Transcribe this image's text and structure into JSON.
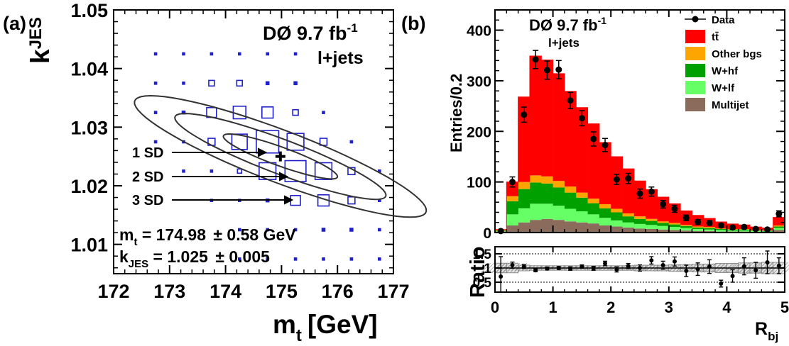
{
  "chart_data": [
    {
      "panel_label": "(a)",
      "type": "scatter",
      "title": "DØ 9.7 fb",
      "title_sup": "-1",
      "subtitle": "l+jets",
      "xlabel": "m",
      "xlabel_sub": "t",
      "xlabel_unit": "[GeV]",
      "ylabel": "k",
      "ylabel_sub": "JES",
      "xlim": [
        172,
        177
      ],
      "ylim": [
        1.005,
        1.05
      ],
      "x_ticks": [
        "172",
        "173",
        "174",
        "175",
        "176",
        "177"
      ],
      "y_ticks": [
        "1.01",
        "1.02",
        "1.03",
        "1.04",
        "1.05"
      ],
      "x_tick_values": [
        172,
        173,
        174,
        175,
        176,
        177
      ],
      "y_tick_values": [
        1.01,
        1.02,
        1.03,
        1.04,
        1.05
      ],
      "box_color": "#2020c8",
      "ellipse_color": "#333333",
      "best_fit": {
        "x": 174.98,
        "y": 1.025
      },
      "ellipses": [
        {
          "label": "1 SD",
          "cx": 174.98,
          "cy": 1.025,
          "ax": [
            1.0,
            -0.0037
          ],
          "ay": [
            0.2,
            0.001
          ]
        },
        {
          "label": "2 SD",
          "cx": 174.98,
          "cy": 1.025,
          "ax": [
            1.85,
            -0.0071
          ],
          "ay": [
            0.37,
            0.0018
          ]
        },
        {
          "label": "3 SD",
          "cx": 174.98,
          "cy": 1.025,
          "ax": [
            2.55,
            -0.01
          ],
          "ay": [
            0.55,
            0.0027
          ]
        }
      ],
      "arrow_labels": [
        "1 SD",
        "2 SD",
        "3 SD"
      ],
      "grid_cells": [
        {
          "x": 172.75,
          "y": 1.0425,
          "w": 0.05
        },
        {
          "x": 173.25,
          "y": 1.0425,
          "w": 0.05
        },
        {
          "x": 173.75,
          "y": 1.0425,
          "w": 0.05
        },
        {
          "x": 174.25,
          "y": 1.0425,
          "w": 0.05
        },
        {
          "x": 174.75,
          "y": 1.0425,
          "w": 0.05
        },
        {
          "x": 175.25,
          "y": 1.0425,
          "w": 0.05
        },
        {
          "x": 172.75,
          "y": 1.0375,
          "w": 0.05
        },
        {
          "x": 173.25,
          "y": 1.0375,
          "w": 0.05
        },
        {
          "x": 173.75,
          "y": 1.0375,
          "w": 0.2
        },
        {
          "x": 174.25,
          "y": 1.0375,
          "w": 0.2
        },
        {
          "x": 174.75,
          "y": 1.0375,
          "w": 0.1
        },
        {
          "x": 175.25,
          "y": 1.0375,
          "w": 0.1
        },
        {
          "x": 172.75,
          "y": 1.0325,
          "w": 0.05
        },
        {
          "x": 173.25,
          "y": 1.0325,
          "w": 0.1
        },
        {
          "x": 173.75,
          "y": 1.0325,
          "w": 0.35
        },
        {
          "x": 174.25,
          "y": 1.0325,
          "w": 0.45
        },
        {
          "x": 174.75,
          "y": 1.0325,
          "w": 0.4
        },
        {
          "x": 175.25,
          "y": 1.0325,
          "w": 0.2
        },
        {
          "x": 175.75,
          "y": 1.0325,
          "w": 0.05
        },
        {
          "x": 172.75,
          "y": 1.0275,
          "w": 0.05
        },
        {
          "x": 173.25,
          "y": 1.0275,
          "w": 0.05
        },
        {
          "x": 173.75,
          "y": 1.0275,
          "w": 0.25
        },
        {
          "x": 174.25,
          "y": 1.0275,
          "w": 0.55
        },
        {
          "x": 174.75,
          "y": 1.0275,
          "w": 0.8
        },
        {
          "x": 175.25,
          "y": 1.0275,
          "w": 0.6
        },
        {
          "x": 175.75,
          "y": 1.0275,
          "w": 0.25
        },
        {
          "x": 176.25,
          "y": 1.0275,
          "w": 0.05
        },
        {
          "x": 173.25,
          "y": 1.0225,
          "w": 0.05
        },
        {
          "x": 173.75,
          "y": 1.0225,
          "w": 0.05
        },
        {
          "x": 174.25,
          "y": 1.0225,
          "w": 0.15
        },
        {
          "x": 174.75,
          "y": 1.0225,
          "w": 0.6
        },
        {
          "x": 175.25,
          "y": 1.0225,
          "w": 0.75
        },
        {
          "x": 175.75,
          "y": 1.0225,
          "w": 0.6
        },
        {
          "x": 176.25,
          "y": 1.0225,
          "w": 0.25
        },
        {
          "x": 176.75,
          "y": 1.0225,
          "w": 0.05
        },
        {
          "x": 173.75,
          "y": 1.0175,
          "w": 0.05
        },
        {
          "x": 174.25,
          "y": 1.0175,
          "w": 0.05
        },
        {
          "x": 174.75,
          "y": 1.0175,
          "w": 0.1
        },
        {
          "x": 175.25,
          "y": 1.0175,
          "w": 0.35
        },
        {
          "x": 175.75,
          "y": 1.0175,
          "w": 0.4
        },
        {
          "x": 176.25,
          "y": 1.0175,
          "w": 0.25
        },
        {
          "x": 176.75,
          "y": 1.0175,
          "w": 0.05
        },
        {
          "x": 174.25,
          "y": 1.0125,
          "w": 0.05
        },
        {
          "x": 174.75,
          "y": 1.0125,
          "w": 0.05
        },
        {
          "x": 175.25,
          "y": 1.0125,
          "w": 0.05
        },
        {
          "x": 175.75,
          "y": 1.0125,
          "w": 0.1
        },
        {
          "x": 176.25,
          "y": 1.0125,
          "w": 0.1
        },
        {
          "x": 176.75,
          "y": 1.0125,
          "w": 0.05
        },
        {
          "x": 174.25,
          "y": 1.0075,
          "w": 0.05
        },
        {
          "x": 174.75,
          "y": 1.0075,
          "w": 0.05
        },
        {
          "x": 175.25,
          "y": 1.0075,
          "w": 0.05
        },
        {
          "x": 175.75,
          "y": 1.0075,
          "w": 0.05
        },
        {
          "x": 176.25,
          "y": 1.0075,
          "w": 0.05
        },
        {
          "x": 176.75,
          "y": 1.0075,
          "w": 0.05
        }
      ],
      "results": [
        {
          "name": "m",
          "sub": "t",
          "value": " = 174.98 ",
          "pm": "± 0.58 GeV"
        },
        {
          "name": "k",
          "sub": "JES",
          "value": " = 1.025 ",
          "pm": "± 0.005"
        }
      ]
    },
    {
      "panel_label": "(b)",
      "type": "bar",
      "title": "DØ 9.7 fb",
      "title_sup": "-1",
      "subtitle": "l+jets",
      "ylabel": "Entries/0.2",
      "xlabel": "R",
      "xlabel_sub": "bj",
      "xlim": [
        0,
        5
      ],
      "ylim": [
        0,
        440
      ],
      "x_ticks": [
        "0",
        "1",
        "2",
        "3",
        "4",
        "5"
      ],
      "y_ticks": [
        "0",
        "100",
        "200",
        "300",
        "400"
      ],
      "x_tick_values": [
        0,
        1,
        2,
        3,
        4,
        5
      ],
      "y_tick_values": [
        0,
        100,
        200,
        300,
        400
      ],
      "bin_edges": [
        0,
        0.2,
        0.4,
        0.6,
        0.8,
        1.0,
        1.2,
        1.4,
        1.6,
        1.8,
        2.0,
        2.2,
        2.4,
        2.6,
        2.8,
        3.0,
        3.2,
        3.4,
        3.6,
        3.8,
        4.0,
        4.2,
        4.4,
        4.6,
        4.8,
        5.0
      ],
      "legend": [
        {
          "label": "Data",
          "color": "#000000",
          "kind": "marker"
        },
        {
          "label": "tt̄",
          "color": "#ff0000",
          "kind": "box"
        },
        {
          "label": "Other bgs",
          "color": "#ffa500",
          "kind": "box"
        },
        {
          "label": "W+hf",
          "color": "#00a000",
          "kind": "box"
        },
        {
          "label": "W+lf",
          "color": "#66ff66",
          "kind": "box"
        },
        {
          "label": "Multijet",
          "color": "#8b6b5b",
          "kind": "box"
        }
      ],
      "stack_order": [
        "Multijet",
        "W+lf",
        "W+hf",
        "Other bgs",
        "tt̄"
      ],
      "series": [
        {
          "name": "Multijet",
          "color": "#8b6b5b",
          "values": [
            2,
            14,
            20,
            25,
            27,
            25,
            22,
            20,
            18,
            14,
            12,
            10,
            8,
            7,
            6,
            5,
            4,
            3,
            3,
            2,
            2,
            2,
            1,
            1,
            5
          ]
        },
        {
          "name": "W+lf",
          "color": "#66ff66",
          "values": [
            1,
            22,
            28,
            32,
            30,
            28,
            25,
            22,
            18,
            15,
            12,
            10,
            9,
            8,
            7,
            6,
            5,
            4,
            3,
            3,
            2,
            2,
            2,
            1,
            4
          ]
        },
        {
          "name": "W+hf",
          "color": "#00a000",
          "values": [
            1,
            26,
            38,
            42,
            40,
            36,
            32,
            27,
            22,
            19,
            16,
            12,
            10,
            8,
            6,
            5,
            4,
            3,
            3,
            2,
            2,
            2,
            1,
            1,
            3
          ]
        },
        {
          "name": "Other bgs",
          "color": "#ffa500",
          "values": [
            1,
            10,
            14,
            14,
            14,
            13,
            12,
            10,
            9,
            8,
            7,
            6,
            5,
            4,
            3,
            3,
            2,
            2,
            2,
            1,
            1,
            1,
            1,
            1,
            2
          ]
        },
        {
          "name": "tt̄",
          "color": "#ff0000",
          "values": [
            1,
            28,
            168,
            236,
            230,
            212,
            188,
            168,
            148,
            122,
            103,
            88,
            70,
            58,
            48,
            38,
            28,
            22,
            17,
            13,
            10,
            8,
            6,
            5,
            16
          ]
        }
      ],
      "data": {
        "name": "Data",
        "values": [
          3,
          100,
          233,
          342,
          321,
          322,
          261,
          226,
          185,
          173,
          105,
          107,
          77,
          81,
          56,
          47,
          29,
          21,
          19,
          14,
          10,
          11,
          7,
          6,
          37
        ],
        "errors": [
          2,
          10,
          15,
          18,
          18,
          18,
          16,
          15,
          14,
          13,
          10,
          10,
          9,
          9,
          7.5,
          7,
          5.5,
          4.6,
          4.4,
          3.7,
          3.2,
          3.3,
          2.6,
          2.4,
          6
        ]
      }
    },
    {
      "panel_label": "",
      "type": "scatter",
      "ylabel": "Ratio",
      "xlim": [
        0,
        5
      ],
      "ylim": [
        0.15,
        1.75
      ],
      "x_ticks": [
        "0",
        "1",
        "2",
        "3",
        "4",
        "5"
      ],
      "y_ticks": [
        "0.5",
        "1",
        "1.5"
      ],
      "y_tick_values": [
        0.5,
        1,
        1.5
      ],
      "reference_lines": [
        0.5,
        1,
        1.5
      ],
      "band_halfwidth": [
        0.17,
        0.17,
        0.1,
        0.08,
        0.08,
        0.08,
        0.08,
        0.08,
        0.08,
        0.08,
        0.08,
        0.08,
        0.1,
        0.1,
        0.1,
        0.12,
        0.12,
        0.14,
        0.14,
        0.16,
        0.16,
        0.18,
        0.18,
        0.2,
        0.2
      ],
      "values": [
        0.7,
        1.1,
        1.05,
        0.92,
        0.98,
        1.0,
        0.98,
        1.05,
        0.99,
        1.16,
        0.95,
        1.07,
        1.0,
        1.27,
        1.1,
        1.23,
        0.9,
        0.96,
        1.05,
        0.45,
        0.72,
        1.06,
        0.92,
        1.2,
        1.08
      ],
      "errors": [
        0.7,
        0.11,
        0.07,
        0.05,
        0.05,
        0.05,
        0.06,
        0.06,
        0.07,
        0.08,
        0.09,
        0.09,
        0.11,
        0.13,
        0.14,
        0.16,
        0.2,
        0.22,
        0.24,
        0.12,
        0.22,
        0.3,
        0.28,
        0.4,
        0.28
      ]
    }
  ]
}
